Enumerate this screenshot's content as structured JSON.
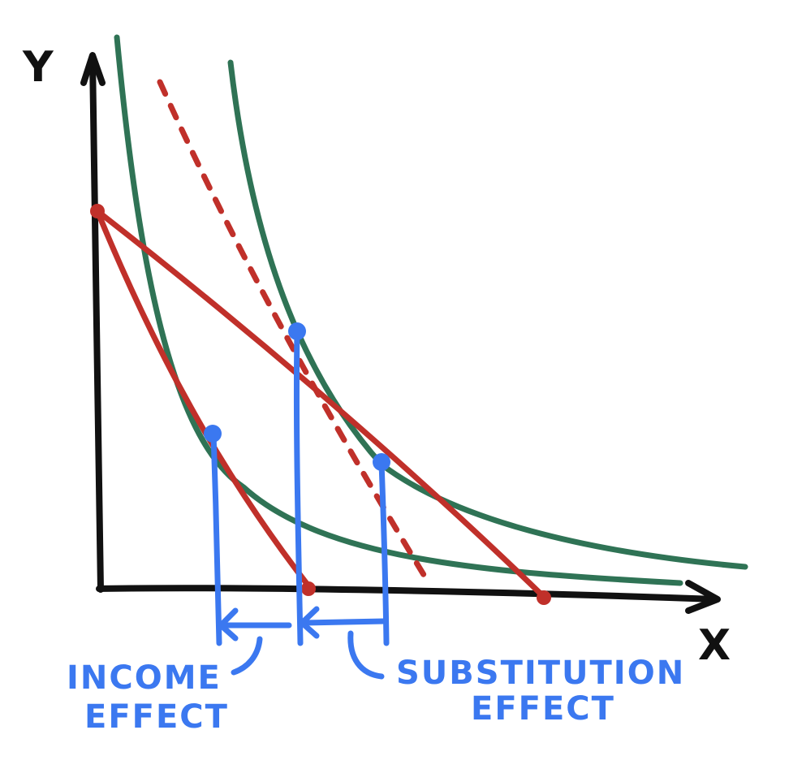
{
  "labels": {
    "y_axis": "Y",
    "x_axis": "X",
    "income_effect_line1": "INCOME",
    "income_effect_line2": "EFFECT",
    "substitution_effect_line1": "SUBSTITUTION",
    "substitution_effect_line2": "EFFECT"
  },
  "colors": {
    "axes": "#111111",
    "budget_lines": "#c0302a",
    "indifference_curves": "#2f7355",
    "points_and_effects": "#3b78f0"
  }
}
